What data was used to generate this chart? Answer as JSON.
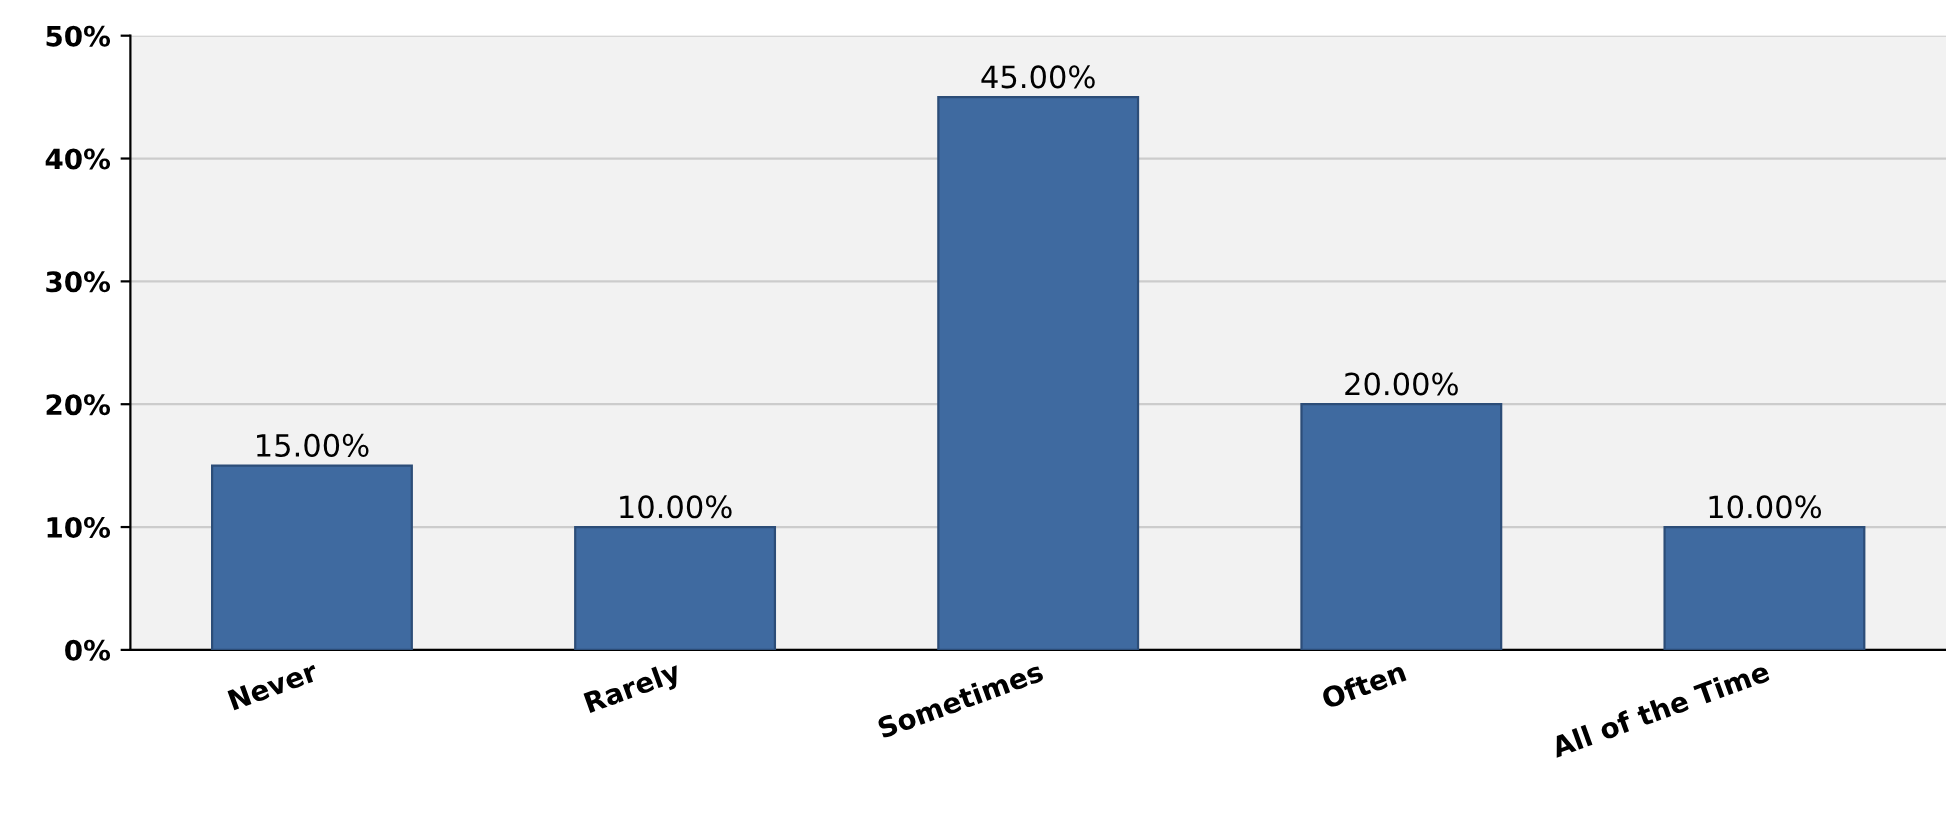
{
  "chart_data": {
    "type": "bar",
    "categories": [
      "Never",
      "Rarely",
      "Sometimes",
      "Often",
      "All of the Time"
    ],
    "values": [
      15,
      10,
      45,
      20,
      10
    ],
    "value_labels": [
      "15.00%",
      "10.00%",
      "45.00%",
      "20.00%",
      "10.00%"
    ],
    "color": "#3f6aa0",
    "ylim": [
      0,
      50
    ],
    "yticks": [
      {
        "value": 0,
        "label": "0%"
      },
      {
        "value": 10,
        "label": "10%"
      },
      {
        "value": 20,
        "label": "20%"
      },
      {
        "value": 30,
        "label": "30%"
      },
      {
        "value": 40,
        "label": "40%"
      },
      {
        "value": 50,
        "label": "50%"
      }
    ],
    "grid": "y",
    "legend": false
  }
}
